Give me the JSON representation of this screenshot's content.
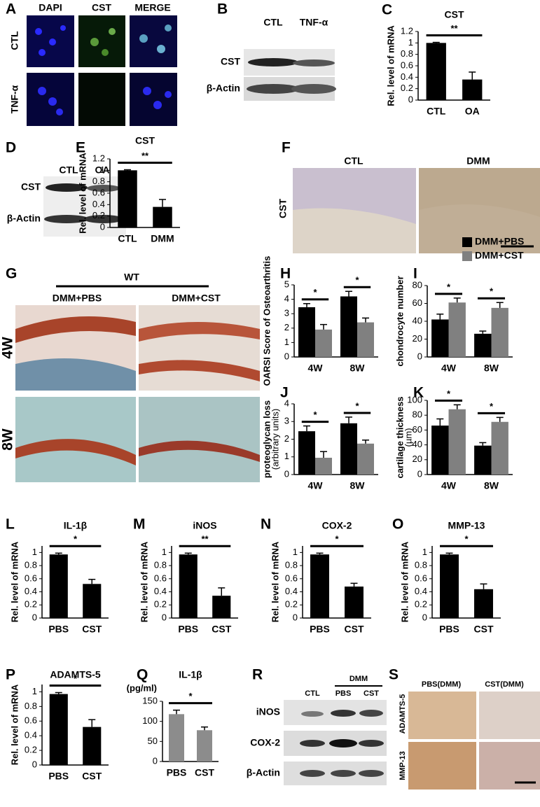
{
  "chart_data": [
    {
      "type": "bar",
      "panel": "C",
      "title": "CST",
      "ylabel": "Rel. level of mRNA",
      "categories": [
        "CTL",
        "OA"
      ],
      "values": [
        1,
        0.36
      ],
      "errors": [
        0.01,
        0.13
      ],
      "color": "#000000",
      "ylim": [
        0,
        1.2
      ],
      "yticks": [
        0,
        0.2,
        0.4,
        0.6,
        0.8,
        1,
        1.2
      ],
      "significance": "**"
    },
    {
      "type": "bar",
      "panel": "E",
      "title": "CST",
      "ylabel": "Rel. level of mRNA",
      "categories": [
        "CTL",
        "DMM"
      ],
      "values": [
        1,
        0.36
      ],
      "errors": [
        0.01,
        0.13
      ],
      "color": "#000000",
      "ylim": [
        0,
        1.2
      ],
      "yticks": [
        0,
        0.2,
        0.4,
        0.6,
        0.8,
        1,
        1.2
      ],
      "significance": "**"
    },
    {
      "type": "grouped-bar",
      "panel": "H",
      "ylabel": "OARSI Score of Osteoarthritis",
      "categories": [
        "4W",
        "8W"
      ],
      "series": [
        {
          "color": "#000000",
          "values": [
            3.45,
            4.2
          ],
          "errors": [
            0.25,
            0.35
          ]
        },
        {
          "color": "#808080",
          "values": [
            1.9,
            2.4
          ],
          "errors": [
            0.35,
            0.3
          ]
        }
      ],
      "ylim": [
        0,
        5
      ],
      "yticks": [
        0,
        1,
        2,
        3,
        4,
        5
      ],
      "significance": [
        "*",
        "*"
      ]
    },
    {
      "type": "grouped-bar",
      "panel": "I",
      "ylabel": "chondrocyte number",
      "categories": [
        "4W",
        "8W"
      ],
      "series": [
        {
          "name": "DMM+PBS",
          "color": "#000000",
          "values": [
            42,
            26
          ],
          "errors": [
            6,
            3
          ]
        },
        {
          "name": "DMM+CST",
          "color": "#808080",
          "values": [
            61,
            55
          ],
          "errors": [
            5,
            6
          ]
        }
      ],
      "ylim": [
        0,
        80
      ],
      "yticks": [
        0,
        20,
        40,
        60,
        80
      ],
      "legend": "top-right",
      "significance": [
        "*",
        "*"
      ]
    },
    {
      "type": "grouped-bar",
      "panel": "J",
      "ylabel": "proteoglycan loss",
      "ylabel_unit": "(arbitrary units)",
      "categories": [
        "4W",
        "8W"
      ],
      "series": [
        {
          "color": "#000000",
          "values": [
            2.45,
            2.9
          ],
          "errors": [
            0.3,
            0.35
          ]
        },
        {
          "color": "#808080",
          "values": [
            0.95,
            1.75
          ],
          "errors": [
            0.35,
            0.2
          ]
        }
      ],
      "ylim": [
        0,
        4
      ],
      "yticks": [
        0,
        1,
        2,
        3,
        4
      ],
      "significance": [
        "*",
        "*"
      ]
    },
    {
      "type": "grouped-bar",
      "panel": "K",
      "ylabel": "cartilage thickness",
      "ylabel_unit": "(µm)",
      "categories": [
        "4W",
        "8W"
      ],
      "series": [
        {
          "color": "#000000",
          "values": [
            66,
            39
          ],
          "errors": [
            9,
            4
          ]
        },
        {
          "color": "#808080",
          "values": [
            88,
            71
          ],
          "errors": [
            6,
            6
          ]
        }
      ],
      "ylim": [
        0,
        100
      ],
      "yticks": [
        0,
        20,
        40,
        60,
        80,
        100
      ],
      "significance": [
        "*",
        "*"
      ]
    },
    {
      "type": "bar",
      "panel": "L",
      "title": "IL-1β",
      "ylabel": "Rel. level of mRNA",
      "categories": [
        "PBS",
        "CST"
      ],
      "values": [
        0.97,
        0.52
      ],
      "errors": [
        0.02,
        0.07
      ],
      "color": "#000000",
      "ylim": [
        0,
        1.1
      ],
      "yticks": [
        0,
        0.2,
        0.4,
        0.6,
        0.8,
        1
      ],
      "significance": "*"
    },
    {
      "type": "bar",
      "panel": "M",
      "title": "iNOS",
      "ylabel": "Rel. level of mRNA",
      "categories": [
        "PBS",
        "CST"
      ],
      "values": [
        0.97,
        0.34
      ],
      "errors": [
        0.02,
        0.12
      ],
      "color": "#000000",
      "ylim": [
        0,
        1.1
      ],
      "yticks": [
        0,
        0.2,
        0.4,
        0.6,
        0.8,
        1
      ],
      "significance": "**"
    },
    {
      "type": "bar",
      "panel": "N",
      "title": "COX-2",
      "ylabel": "Rel. level of mRNA",
      "categories": [
        "PBS",
        "CST"
      ],
      "values": [
        0.97,
        0.48
      ],
      "errors": [
        0.02,
        0.05
      ],
      "color": "#000000",
      "ylim": [
        0,
        1.1
      ],
      "yticks": [
        0,
        0.2,
        0.4,
        0.6,
        0.8,
        1
      ],
      "significance": "*"
    },
    {
      "type": "bar",
      "panel": "O",
      "title": "MMP-13",
      "ylabel": "Rel. level of mRNA",
      "categories": [
        "PBS",
        "CST"
      ],
      "values": [
        0.97,
        0.44
      ],
      "errors": [
        0.02,
        0.08
      ],
      "color": "#000000",
      "ylim": [
        0,
        1.1
      ],
      "yticks": [
        0,
        0.2,
        0.4,
        0.6,
        0.8,
        1
      ],
      "significance": "*"
    },
    {
      "type": "bar",
      "panel": "P",
      "title": "ADAMTS-5",
      "ylabel": "Rel. level of mRNA",
      "categories": [
        "PBS",
        "CST"
      ],
      "values": [
        0.97,
        0.52
      ],
      "errors": [
        0.02,
        0.1
      ],
      "color": "#000000",
      "ylim": [
        0,
        1.1
      ],
      "yticks": [
        0,
        0.2,
        0.4,
        0.6,
        0.8,
        1
      ],
      "significance": "*"
    },
    {
      "type": "bar",
      "panel": "Q",
      "title": "IL-1β",
      "yunit": "(pg/ml)",
      "categories": [
        "PBS",
        "CST"
      ],
      "values": [
        118,
        78
      ],
      "errors": [
        10,
        8
      ],
      "color": "#8c8c8c",
      "ylim": [
        0,
        150
      ],
      "yticks": [
        0,
        50,
        100,
        150
      ],
      "significance": "*"
    }
  ],
  "images": [
    {
      "panel": "A",
      "columns": [
        "DAPI",
        "CST",
        "MERGE"
      ],
      "rows": [
        "CTL",
        "TNF-α"
      ]
    },
    {
      "panel": "B",
      "columns": [
        "CTL",
        "TNF-α"
      ],
      "rows": [
        "CST",
        "β-Actin"
      ]
    },
    {
      "panel": "D",
      "columns": [
        "CTL",
        "OA"
      ],
      "rows": [
        "CST",
        "β-Actin"
      ]
    },
    {
      "panel": "F",
      "columns": [
        "CTL",
        "DMM"
      ],
      "rows": [
        "CST"
      ]
    },
    {
      "panel": "G",
      "group": "WT",
      "columns": [
        "DMM+PBS",
        "DMM+CST"
      ],
      "rows": [
        "4W",
        "8W"
      ]
    },
    {
      "panel": "R",
      "group": "DMM",
      "columns": [
        "CTL",
        "PBS",
        "CST"
      ],
      "rows": [
        "iNOS",
        "COX-2",
        "β-Actin"
      ]
    },
    {
      "panel": "S",
      "columns": [
        "PBS(DMM)",
        "CST(DMM)"
      ],
      "rows": [
        "ADAMTS-5",
        "MMP-13"
      ]
    }
  ]
}
